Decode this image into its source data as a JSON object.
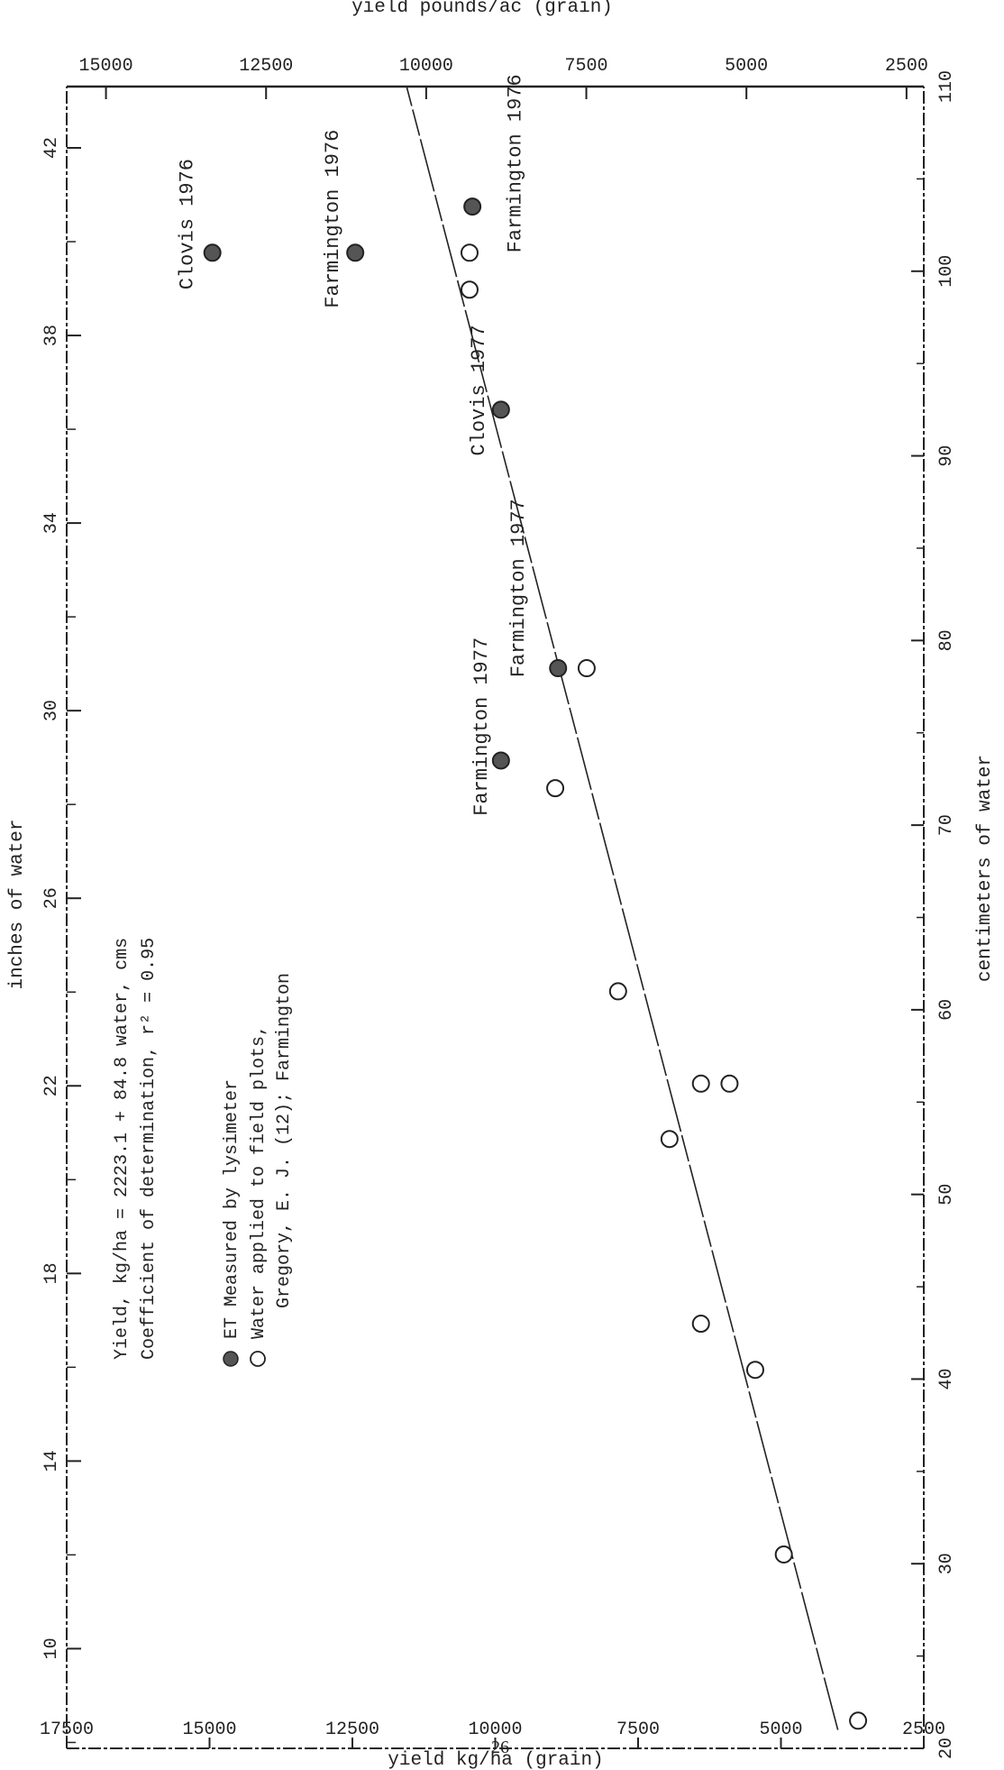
{
  "page_number": "26",
  "chart_data": {
    "type": "scatter",
    "x_bottom_label": "centimeters of water",
    "x_top_label": "inches of water",
    "y_left_label": "yield kg/ha (grain)",
    "y_right_label": "yield pounds/ac (grain)",
    "x_ticks_cm": [
      "20",
      "30",
      "40",
      "50",
      "60",
      "70",
      "80",
      "90",
      "100",
      "110"
    ],
    "x_ticks_in": [
      "10",
      "14",
      "18",
      "22",
      "26",
      "30",
      "34",
      "38",
      "42"
    ],
    "y_ticks_kg": [
      "2500",
      "5000",
      "7500",
      "10000",
      "12500",
      "15000",
      "17500"
    ],
    "y_ticks_lb": [
      "2500",
      "5000",
      "7500",
      "10000",
      "12500",
      "15000"
    ],
    "xlim": [
      20,
      110
    ],
    "ylim": [
      2500,
      17500
    ],
    "regression": {
      "intercept": 2223.1,
      "slope": 84.8,
      "equation_text": "Yield, kg/ha = 2223.1 + 84.8 water, cms",
      "r2_text": "Coefficient of determination, r² = 0.95"
    },
    "series": [
      {
        "name": "ET Measured by lysimeter",
        "marker": "filled",
        "points": [
          {
            "x": 73.5,
            "y": 9900
          },
          {
            "x": 78.5,
            "y": 8900
          },
          {
            "x": 92.5,
            "y": 9900
          },
          {
            "x": 103.5,
            "y": 10400
          },
          {
            "x": 101,
            "y": 12450
          },
          {
            "x": 101,
            "y": 14950
          }
        ]
      },
      {
        "name": "Water applied to field plots,",
        "name_line2": "Gregory, E. J. (12); Farmington",
        "marker": "open",
        "points": [
          {
            "x": 21.5,
            "y": 3650
          },
          {
            "x": 30.5,
            "y": 4950
          },
          {
            "x": 40.5,
            "y": 5450
          },
          {
            "x": 43,
            "y": 6400
          },
          {
            "x": 53,
            "y": 6950
          },
          {
            "x": 56,
            "y": 6400
          },
          {
            "x": 56,
            "y": 5900
          },
          {
            "x": 61,
            "y": 7850
          },
          {
            "x": 72,
            "y": 8950
          },
          {
            "x": 78.5,
            "y": 8400
          },
          {
            "x": 99,
            "y": 10450
          },
          {
            "x": 101,
            "y": 10450
          }
        ]
      }
    ],
    "annotations": [
      {
        "text": "Farmington 1977",
        "x": 70.5,
        "y": 10150
      },
      {
        "text": "Farmington 1977",
        "x": 78,
        "y": 9500
      },
      {
        "text": "Clovis 1977",
        "x": 90,
        "y": 10200
      },
      {
        "text": "Farmington 1976",
        "x": 101,
        "y": 9560
      },
      {
        "text": "Farmington 1976",
        "x": 98,
        "y": 12750
      },
      {
        "text": "Clovis 1976",
        "x": 99,
        "y": 15300
      }
    ]
  }
}
